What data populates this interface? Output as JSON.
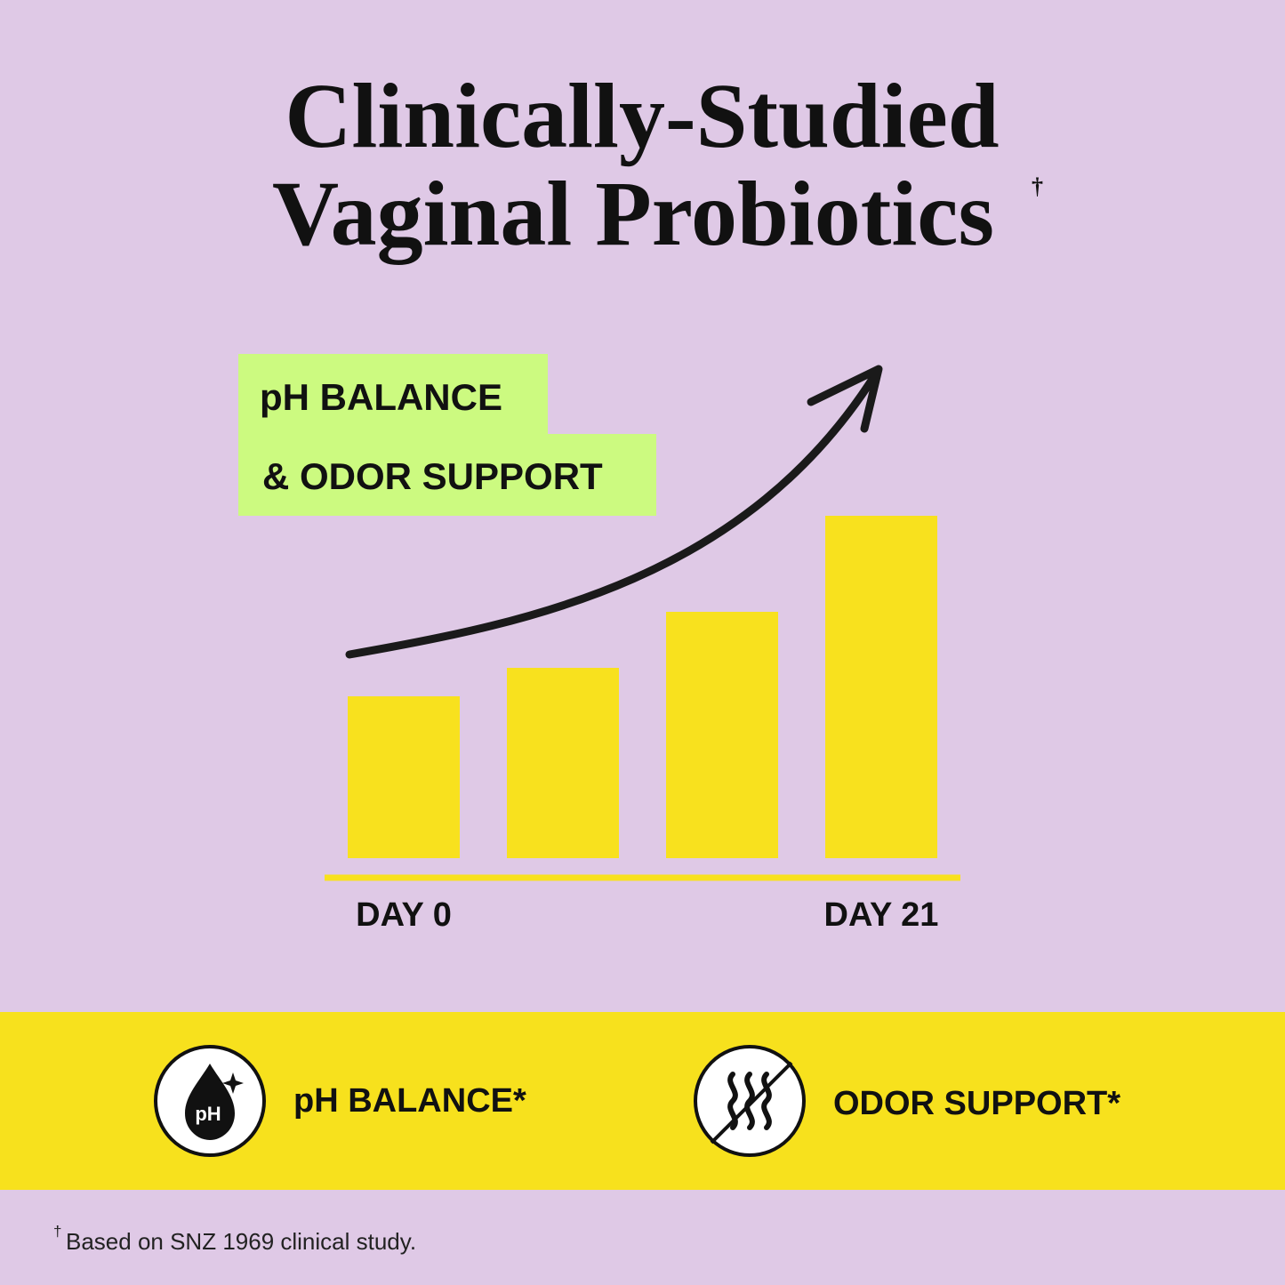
{
  "header": {
    "title_lines": [
      "Clinically-Studied",
      "Vaginal Probiotics"
    ],
    "title_mark": "†"
  },
  "badge": {
    "lines": [
      "pH BALANCE",
      "& ODOR SUPPORT"
    ]
  },
  "chart_data": {
    "type": "bar",
    "categories": [
      "DAY 0",
      null,
      null,
      "DAY 21"
    ],
    "values": [
      182,
      214,
      277,
      385
    ],
    "color": "#f8e11e",
    "ylim": [
      0,
      400
    ]
  },
  "features": [
    {
      "icon_text": "pH",
      "label": "pH BALANCE*"
    },
    {
      "label": "ODOR SUPPORT*"
    }
  ],
  "footnote": {
    "mark": "†",
    "text": "Based on SNZ 1969 clinical study."
  }
}
